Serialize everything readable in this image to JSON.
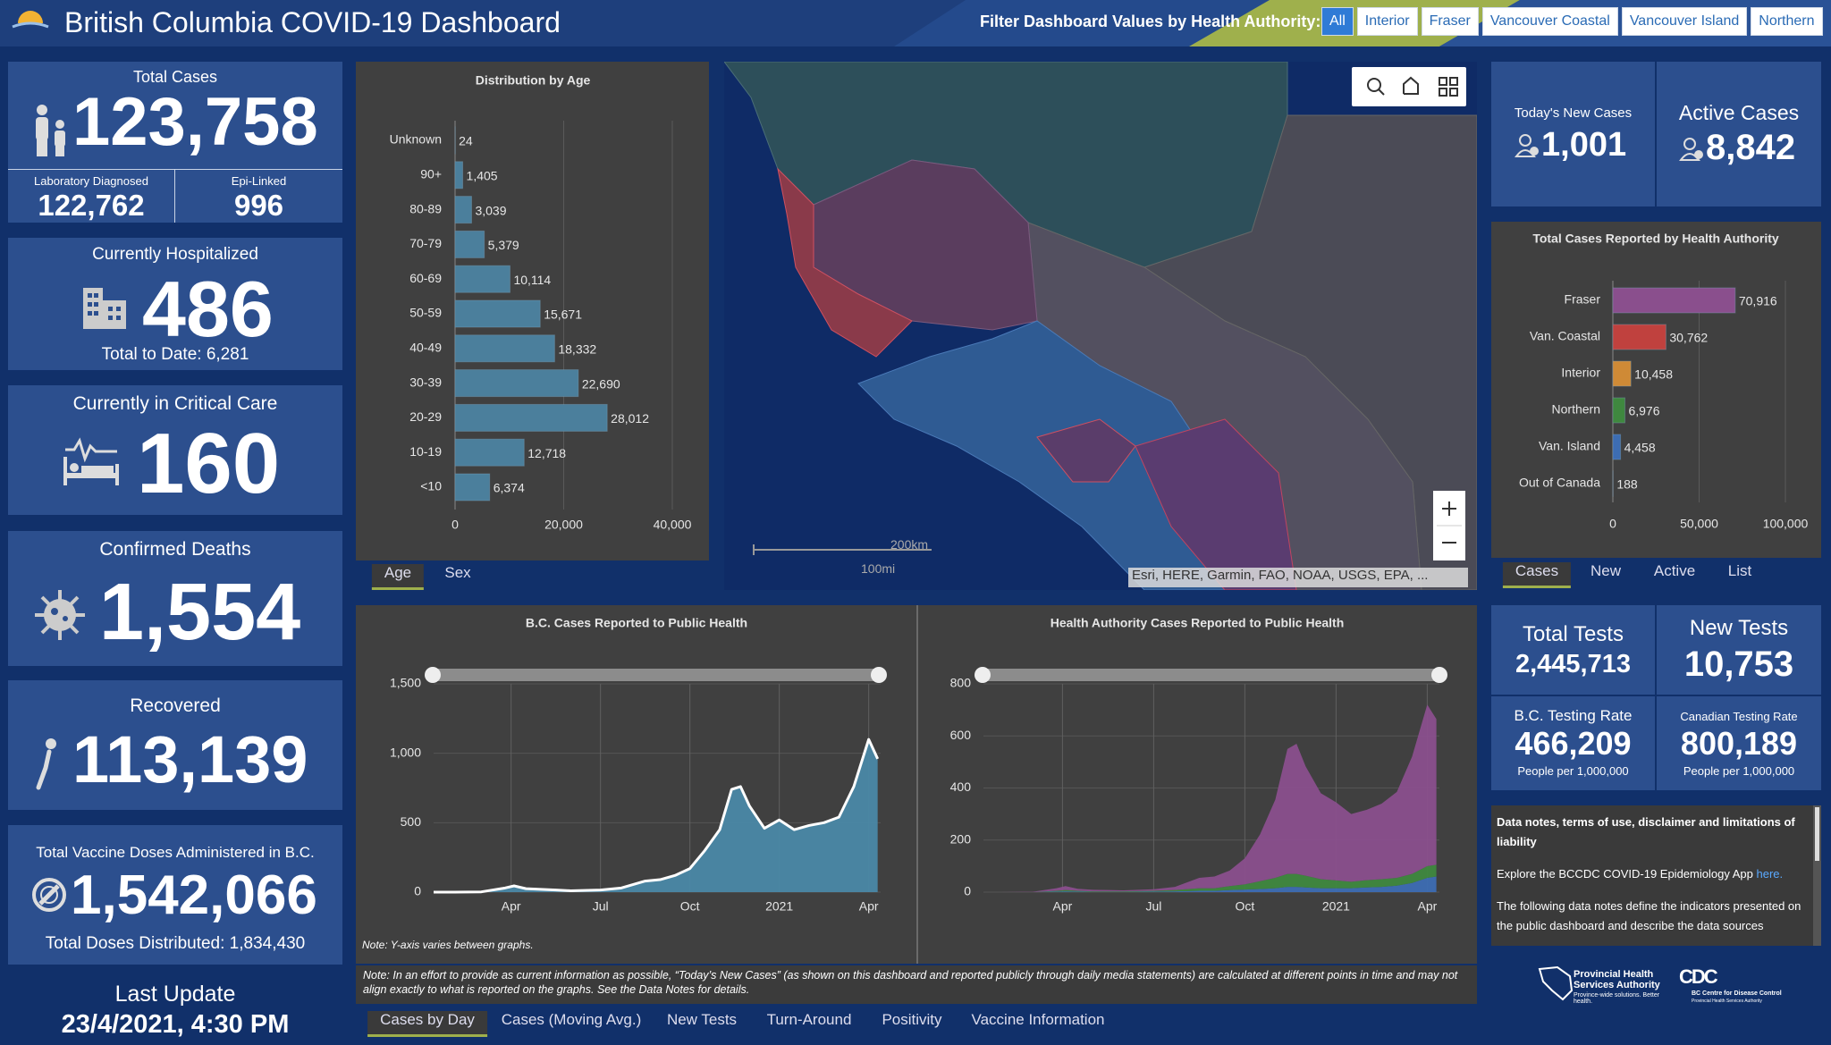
{
  "header": {
    "title": "British Columbia COVID-19 Dashboard",
    "filter_label": "Filter Dashboard Values by Health Authority:",
    "filters": [
      "All",
      "Interior",
      "Fraser",
      "Vancouver Coastal",
      "Vancouver Island",
      "Northern"
    ]
  },
  "total_cases": {
    "label": "Total Cases",
    "value": "123,758",
    "lab_label": "Laboratory Diagnosed",
    "lab_value": "122,762",
    "epi_label": "Epi-Linked",
    "epi_value": "996"
  },
  "hospitalized": {
    "label": "Currently Hospitalized",
    "value": "486",
    "sub": "Total to Date: 6,281"
  },
  "critical": {
    "label": "Currently in Critical Care",
    "value": "160"
  },
  "deaths": {
    "label": "Confirmed Deaths",
    "value": "1,554"
  },
  "recovered": {
    "label": "Recovered",
    "value": "113,139"
  },
  "vaccine": {
    "label": "Total Vaccine Doses Administered in B.C.",
    "value": "1,542,066",
    "sub": "Total Doses Distributed: 1,834,430"
  },
  "last_update": {
    "label": "Last Update",
    "value": "23/4/2021, 4:30 PM"
  },
  "new_cases": {
    "label": "Today's New Cases",
    "value": "1,001"
  },
  "active_cases": {
    "label": "Active Cases",
    "value": "8,842"
  },
  "tests": {
    "total_label": "Total Tests",
    "total_value": "2,445,713",
    "new_label": "New Tests",
    "new_value": "10,753",
    "bc_label": "B.C. Testing Rate",
    "bc_value": "466,209",
    "bc_sub": "People per 1,000,000",
    "ca_label": "Canadian Testing Rate",
    "ca_value": "800,189",
    "ca_sub": "People per 1,000,000"
  },
  "age_tabs": [
    "Age",
    "Sex"
  ],
  "ha_tabs": [
    "Cases",
    "New",
    "Active",
    "List"
  ],
  "bottom_tabs": [
    "Cases by Day",
    "Cases (Moving Avg.)",
    "New Tests",
    "Turn-Around",
    "Positivity",
    "Vaccine Information"
  ],
  "map": {
    "scale_km": "200km",
    "scale_mi": "100mi",
    "attribution": "Esri, HERE, Garmin, FAO, NOAA, USGS, EPA, ..."
  },
  "notes": {
    "y_axis": "Note: Y-axis varies between graphs.",
    "current": "Note: In an effort to provide as current information as possible, “Today’s New Cases” (as shown on this dashboard and reported publicly through daily media statements) are calculated at different points in time and may not align exactly to what is reported on the graphs. See the Data Notes for details."
  },
  "data_notes": {
    "title": "Data notes, terms of use, disclaimer and limitations of liability",
    "explore": "Explore the BCCDC COVID-19 Epidemiology App",
    "link": "here.",
    "text": "The following data notes define the indicators presented on the public dashboard and describe the data sources"
  },
  "logos": {
    "phsa": "Provincial Health Services Authority",
    "phsa_tag": "Province-wide solutions. Better health.",
    "bccdc": "BC Centre for Disease Control",
    "bccdc_sub": "Provincial Health Services Authority"
  },
  "chart_data": [
    {
      "type": "bar",
      "orientation": "horizontal",
      "title": "Distribution by Age",
      "categories": [
        "Unknown",
        "90+",
        "80-89",
        "70-79",
        "60-69",
        "50-59",
        "40-49",
        "30-39",
        "20-29",
        "10-19",
        "<10"
      ],
      "values": [
        24,
        1405,
        3039,
        5379,
        10114,
        15671,
        18332,
        22690,
        28012,
        12718,
        6374
      ],
      "value_labels": [
        "24",
        "1,405",
        "3,039",
        "5,379",
        "10,114",
        "15,671",
        "18,332",
        "22,690",
        "28,012",
        "12,718",
        "6,374"
      ],
      "color": "#4b7f9c",
      "xlim": [
        0,
        40000
      ],
      "xticks": [
        0,
        {
          "value": 20000,
          "label": "20,000"
        },
        {
          "value": 40000,
          "label": "40,000"
        }
      ],
      "grid": true
    },
    {
      "type": "bar",
      "orientation": "horizontal",
      "title": "Total Cases Reported by Health Authority",
      "categories": [
        "Fraser",
        "Van. Coastal",
        "Interior",
        "Northern",
        "Van. Island",
        "Out of Canada"
      ],
      "values": [
        70916,
        30762,
        10458,
        6976,
        4458,
        188
      ],
      "value_labels": [
        "70,916",
        "30,762",
        "10,458",
        "6,976",
        "4,458",
        "188"
      ],
      "colors": [
        "#8a4f8d",
        "#c0413e",
        "#cf8a36",
        "#3f883f",
        "#3d6db3",
        "#666666"
      ],
      "xlim": [
        0,
        100000
      ],
      "xticks": [
        0,
        {
          "value": 50000,
          "label": "50,000"
        },
        {
          "value": 100000,
          "label": "100,000"
        }
      ],
      "grid": true
    },
    {
      "type": "line",
      "title": "B.C. Cases Reported to Public Health",
      "x": [
        0.4,
        1,
        2,
        2.8,
        3.1,
        3.5,
        4,
        4.5,
        5,
        6,
        6.7,
        7.5,
        8,
        8.5,
        9,
        9.5,
        10,
        10.4,
        10.7,
        11,
        11.5,
        12,
        12.5,
        13,
        13.5,
        14,
        14.5,
        15,
        15.3
      ],
      "values": [
        0,
        0,
        2,
        30,
        45,
        25,
        20,
        15,
        10,
        15,
        30,
        80,
        90,
        120,
        170,
        300,
        450,
        740,
        760,
        620,
        460,
        520,
        450,
        480,
        500,
        540,
        760,
        1100,
        960
      ],
      "color": "#ffffff",
      "fill": "#4a88a6",
      "xlim": [
        0.4,
        15.4
      ],
      "ylim": [
        0,
        1500
      ],
      "yticks": [
        0,
        500,
        {
          "value": 1000,
          "label": "1,000"
        },
        {
          "value": 1500,
          "label": "1,500"
        }
      ],
      "xticks": [
        {
          "value": 3,
          "label": "Apr"
        },
        {
          "value": 6,
          "label": "Jul"
        },
        {
          "value": 9,
          "label": "Oct"
        },
        {
          "value": 12,
          "label": "2021"
        },
        {
          "value": 15,
          "label": "Apr"
        }
      ],
      "grid": true
    },
    {
      "type": "area",
      "stacked": true,
      "title": "Health Authority Cases Reported to Public Health",
      "x": [
        0.4,
        1,
        2,
        2.8,
        3.1,
        3.5,
        4,
        4.5,
        5,
        6,
        6.7,
        7.5,
        8,
        8.5,
        9,
        9.5,
        10,
        10.4,
        10.7,
        11,
        11.5,
        12,
        12.5,
        13,
        13.5,
        14,
        14.5,
        15,
        15.3
      ],
      "series": [
        {
          "color": "#3d6db3",
          "values": [
            0,
            0,
            0,
            2,
            3,
            2,
            1,
            1,
            1,
            2,
            3,
            5,
            5,
            8,
            10,
            12,
            15,
            20,
            20,
            18,
            15,
            15,
            15,
            18,
            20,
            25,
            35,
            55,
            60
          ]
        },
        {
          "color": "#3f883f",
          "values": [
            0,
            0,
            0,
            3,
            5,
            3,
            2,
            2,
            2,
            3,
            5,
            10,
            10,
            15,
            20,
            30,
            40,
            50,
            50,
            45,
            35,
            30,
            25,
            28,
            30,
            30,
            35,
            45,
            45
          ]
        },
        {
          "color": "#8a4f8d",
          "values": [
            0,
            0,
            1,
            10,
            15,
            8,
            6,
            5,
            4,
            6,
            12,
            40,
            45,
            60,
            100,
            180,
            300,
            480,
            500,
            420,
            330,
            300,
            260,
            270,
            290,
            330,
            450,
            620,
            560
          ]
        }
      ],
      "xlim": [
        0.4,
        15.4
      ],
      "ylim": [
        0,
        800
      ],
      "yticks": [
        0,
        200,
        400,
        600,
        800
      ],
      "xticks": [
        {
          "value": 3,
          "label": "Apr"
        },
        {
          "value": 6,
          "label": "Jul"
        },
        {
          "value": 9,
          "label": "Oct"
        },
        {
          "value": 12,
          "label": "2021"
        },
        {
          "value": 15,
          "label": "Apr"
        }
      ],
      "grid": true
    }
  ]
}
